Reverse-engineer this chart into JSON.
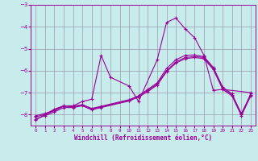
{
  "xlabel": "Windchill (Refroidissement éolien,°C)",
  "bg_color": "#c8ecec",
  "line_color": "#990099",
  "grid_color": "#9999aa",
  "xlim": [
    -0.5,
    23.5
  ],
  "ylim": [
    -8.5,
    -3.0
  ],
  "xticks": [
    0,
    1,
    2,
    3,
    4,
    5,
    6,
    7,
    8,
    9,
    10,
    11,
    12,
    13,
    14,
    15,
    16,
    17,
    18,
    19,
    20,
    21,
    22,
    23
  ],
  "yticks": [
    -8,
    -7,
    -6,
    -5,
    -4,
    -3
  ],
  "s1_x": [
    0,
    1,
    2,
    3,
    4,
    5,
    6,
    7,
    8,
    10,
    11,
    13,
    14,
    15,
    16,
    17,
    18,
    19,
    20,
    23
  ],
  "s1_y": [
    -8.25,
    -8.0,
    -7.75,
    -7.6,
    -7.6,
    -7.4,
    -7.3,
    -5.3,
    -6.3,
    -6.7,
    -7.4,
    -5.5,
    -3.8,
    -3.6,
    -4.1,
    -4.5,
    -5.3,
    -6.9,
    -6.85,
    -7.0
  ],
  "s2_x": [
    0,
    1,
    2,
    3,
    4,
    5,
    6,
    7,
    10,
    11,
    12,
    13,
    14,
    15,
    16,
    17,
    18,
    19,
    20,
    21,
    22,
    23
  ],
  "s2_y": [
    -8.05,
    -7.95,
    -7.8,
    -7.6,
    -7.65,
    -7.55,
    -7.75,
    -7.65,
    -7.35,
    -7.15,
    -6.9,
    -6.6,
    -6.0,
    -5.6,
    -5.4,
    -5.35,
    -5.4,
    -5.9,
    -6.8,
    -7.1,
    -7.95,
    -7.1
  ],
  "s3_x": [
    0,
    1,
    2,
    3,
    4,
    5,
    6,
    7,
    10,
    11,
    12,
    13,
    14,
    15,
    16,
    17,
    18,
    19,
    20,
    21,
    22,
    23
  ],
  "s3_y": [
    -8.1,
    -8.0,
    -7.82,
    -7.62,
    -7.62,
    -7.55,
    -7.72,
    -7.62,
    -7.32,
    -7.15,
    -6.85,
    -6.55,
    -5.9,
    -5.5,
    -5.3,
    -5.28,
    -5.36,
    -5.85,
    -6.75,
    -7.05,
    -8.0,
    -7.05
  ],
  "s4_x": [
    0,
    1,
    2,
    3,
    4,
    5,
    6,
    7,
    10,
    11,
    12,
    13,
    14,
    15,
    16,
    17,
    18,
    19,
    20,
    21,
    22,
    23
  ],
  "s4_y": [
    -8.2,
    -8.05,
    -7.88,
    -7.68,
    -7.68,
    -7.6,
    -7.78,
    -7.68,
    -7.38,
    -7.2,
    -6.95,
    -6.65,
    -6.05,
    -5.65,
    -5.45,
    -5.4,
    -5.45,
    -5.95,
    -6.85,
    -7.15,
    -8.05,
    -7.15
  ]
}
